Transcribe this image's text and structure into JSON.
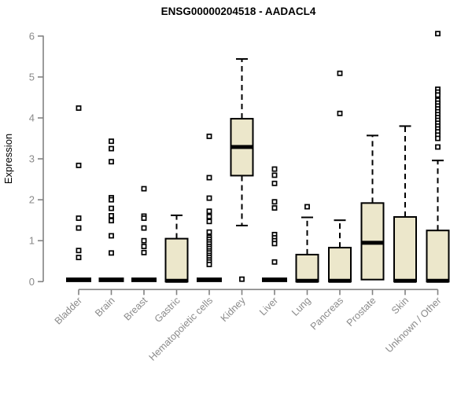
{
  "chart_data": {
    "type": "boxplot",
    "title": "ENSG00000204518 - AADACL4",
    "ylabel": "Expression",
    "xlabel": "",
    "ylim": [
      0,
      6
    ],
    "yticks": [
      0,
      1,
      2,
      3,
      4,
      5,
      6
    ],
    "grid": false,
    "legend": "none",
    "categories": [
      "Bladder",
      "Brain",
      "Breast",
      "Gastric",
      "Hematopoietic cells",
      "Kidney",
      "Liver",
      "Lung",
      "Pancreas",
      "Prostate",
      "Skin",
      "Unknown / Other"
    ],
    "series": [
      {
        "category": "Bladder",
        "low": 0,
        "q1": 0,
        "median": 0,
        "q3": 0,
        "high": 0,
        "outliers": [
          4.24,
          2.84,
          1.55,
          1.31,
          0.76,
          0.59
        ]
      },
      {
        "category": "Brain",
        "low": 0,
        "q1": 0,
        "median": 0,
        "q3": 0,
        "high": 0,
        "outliers": [
          3.43,
          3.25,
          2.93,
          2.05,
          2.0,
          1.79,
          1.61,
          1.49,
          1.12,
          0.7
        ]
      },
      {
        "category": "Breast",
        "low": 0,
        "q1": 0,
        "median": 0,
        "q3": 0,
        "high": 0,
        "outliers": [
          2.27,
          1.6,
          1.55,
          1.31,
          1.0,
          0.86,
          0.71
        ]
      },
      {
        "category": "Gastric",
        "low": 0,
        "q1": 0,
        "median": 0,
        "q3": 1.05,
        "high": 1.62,
        "outliers": []
      },
      {
        "category": "Hematopoietic cells",
        "low": 0,
        "q1": 0,
        "median": 0,
        "q3": 0,
        "high": 0,
        "outliers": [
          3.55,
          2.54,
          2.04,
          1.72,
          1.59,
          1.47,
          1.21,
          1.08,
          1.03,
          0.97,
          0.92,
          0.86,
          0.81,
          0.75,
          0.7,
          0.64,
          0.59,
          0.53,
          0.48,
          0.42
        ]
      },
      {
        "category": "Kidney",
        "low": 1.37,
        "q1": 2.59,
        "median": 3.27,
        "q3": 3.98,
        "high": 5.44,
        "outliers": [
          0.06
        ]
      },
      {
        "category": "Liver",
        "low": 0,
        "q1": 0,
        "median": 0,
        "q3": 0,
        "high": 0,
        "outliers": [
          2.75,
          2.6,
          2.4,
          1.95,
          1.8,
          1.15,
          1.07,
          1.0,
          0.93,
          0.48
        ]
      },
      {
        "category": "Lung",
        "low": 0,
        "q1": 0,
        "median": 0,
        "q3": 0.66,
        "high": 1.57,
        "outliers": [
          1.83
        ]
      },
      {
        "category": "Pancreas",
        "low": 0,
        "q1": 0,
        "median": 0,
        "q3": 0.83,
        "high": 1.5,
        "outliers": [
          5.09,
          4.11
        ]
      },
      {
        "category": "Prostate",
        "low": 0.05,
        "q1": 0.05,
        "median": 0.93,
        "q3": 1.92,
        "high": 3.57,
        "outliers": []
      },
      {
        "category": "Skin",
        "low": 0,
        "q1": 0,
        "median": 0,
        "q3": 1.58,
        "high": 3.8,
        "outliers": []
      },
      {
        "category": "Unknown / Other",
        "low": 0,
        "q1": 0,
        "median": 0,
        "q3": 1.25,
        "high": 2.96,
        "outliers": [
          6.06,
          4.7,
          4.63,
          4.56,
          4.43,
          4.36,
          4.29,
          4.22,
          4.15,
          4.08,
          4.01,
          3.94,
          3.87,
          3.8,
          3.73,
          3.66,
          3.58,
          3.5,
          3.29
        ]
      }
    ],
    "colors": {
      "box_fill": "#ECE7CB",
      "box_stroke": "#000000",
      "median": "#000000",
      "whisker": "#000000",
      "outlier_fill": "#ffffff",
      "outlier_stroke": "#000000",
      "axis": "#828282",
      "tick_labels": "#8a8a8a",
      "title": "#000000",
      "background": "#ffffff"
    }
  }
}
